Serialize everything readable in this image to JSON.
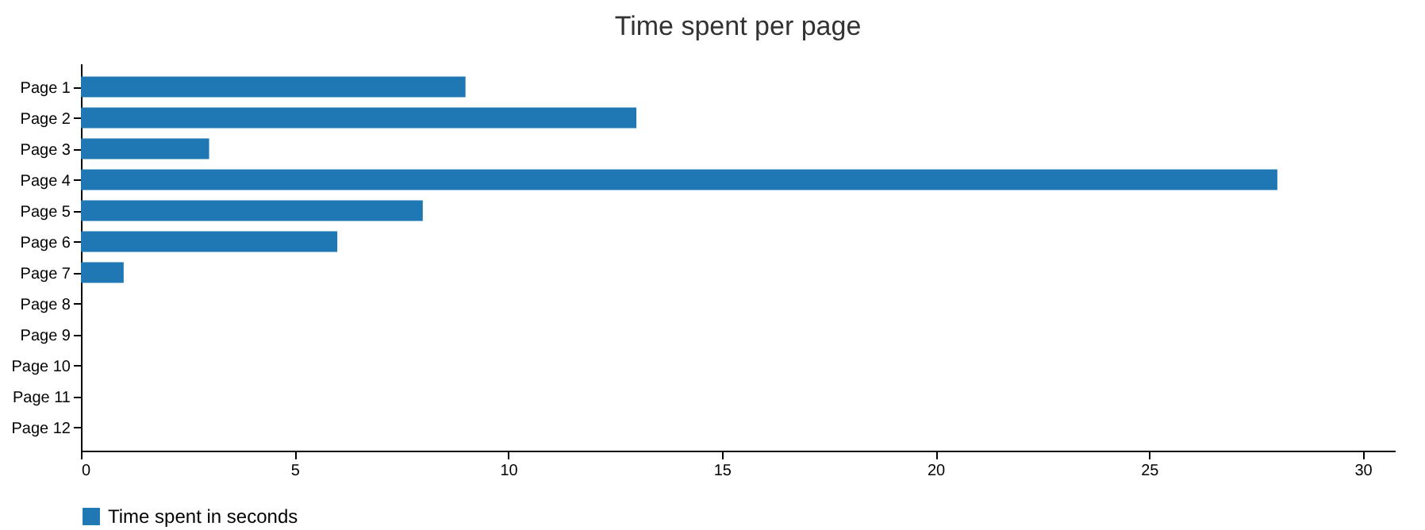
{
  "chart_data": {
    "type": "bar",
    "orientation": "horizontal",
    "title": "Time spent per page",
    "categories": [
      "Page 1",
      "Page 2",
      "Page 3",
      "Page 4",
      "Page 5",
      "Page 6",
      "Page 7",
      "Page 8",
      "Page 9",
      "Page 10",
      "Page 11",
      "Page 12"
    ],
    "series": [
      {
        "name": "Time spent in seconds",
        "color": "#1f77b4",
        "values": [
          9,
          13,
          3,
          28,
          8,
          6,
          1,
          0,
          0,
          0,
          0,
          0
        ]
      }
    ],
    "xlim": [
      0,
      30.75
    ],
    "xticks": [
      0,
      5,
      10,
      15,
      20,
      25,
      30
    ],
    "legend": "bottom"
  }
}
